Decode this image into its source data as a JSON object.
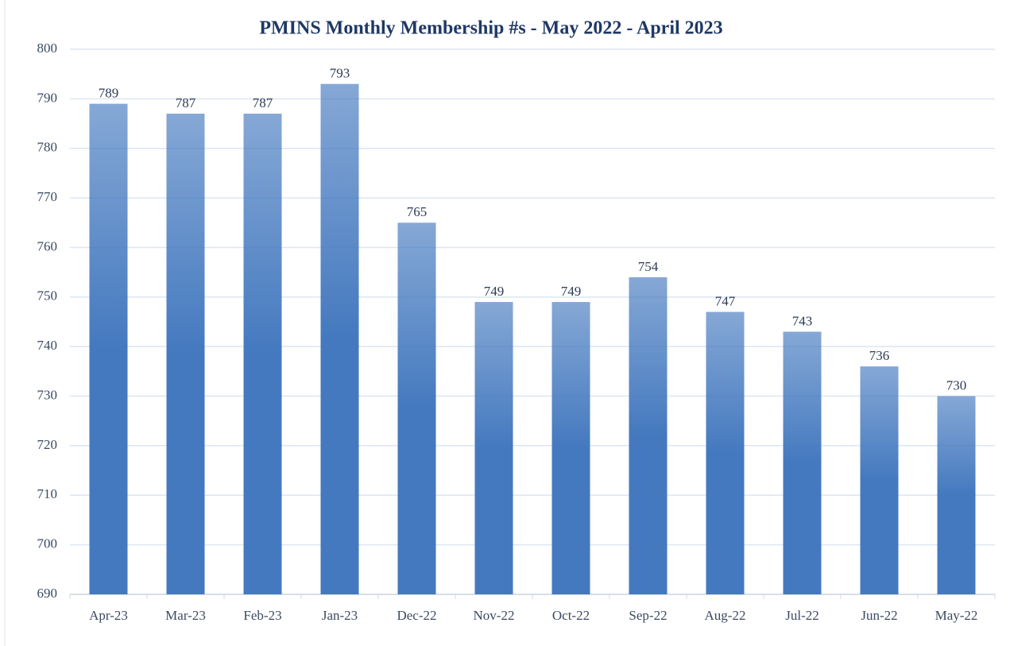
{
  "chart_data": {
    "type": "bar",
    "title": "PMINS Monthly Membership #s - May 2022 - April 2023",
    "categories": [
      "Apr-23",
      "Mar-23",
      "Feb-23",
      "Jan-23",
      "Dec-22",
      "Nov-22",
      "Oct-22",
      "Sep-22",
      "Aug-22",
      "Jul-22",
      "Jun-22",
      "May-22"
    ],
    "values": [
      789,
      787,
      787,
      793,
      765,
      749,
      749,
      754,
      747,
      743,
      736,
      730
    ],
    "color": "#4479bf",
    "ylim": [
      690,
      800
    ],
    "yticks": [
      690,
      700,
      710,
      720,
      730,
      740,
      750,
      760,
      770,
      780,
      790,
      800
    ],
    "grid": true
  }
}
